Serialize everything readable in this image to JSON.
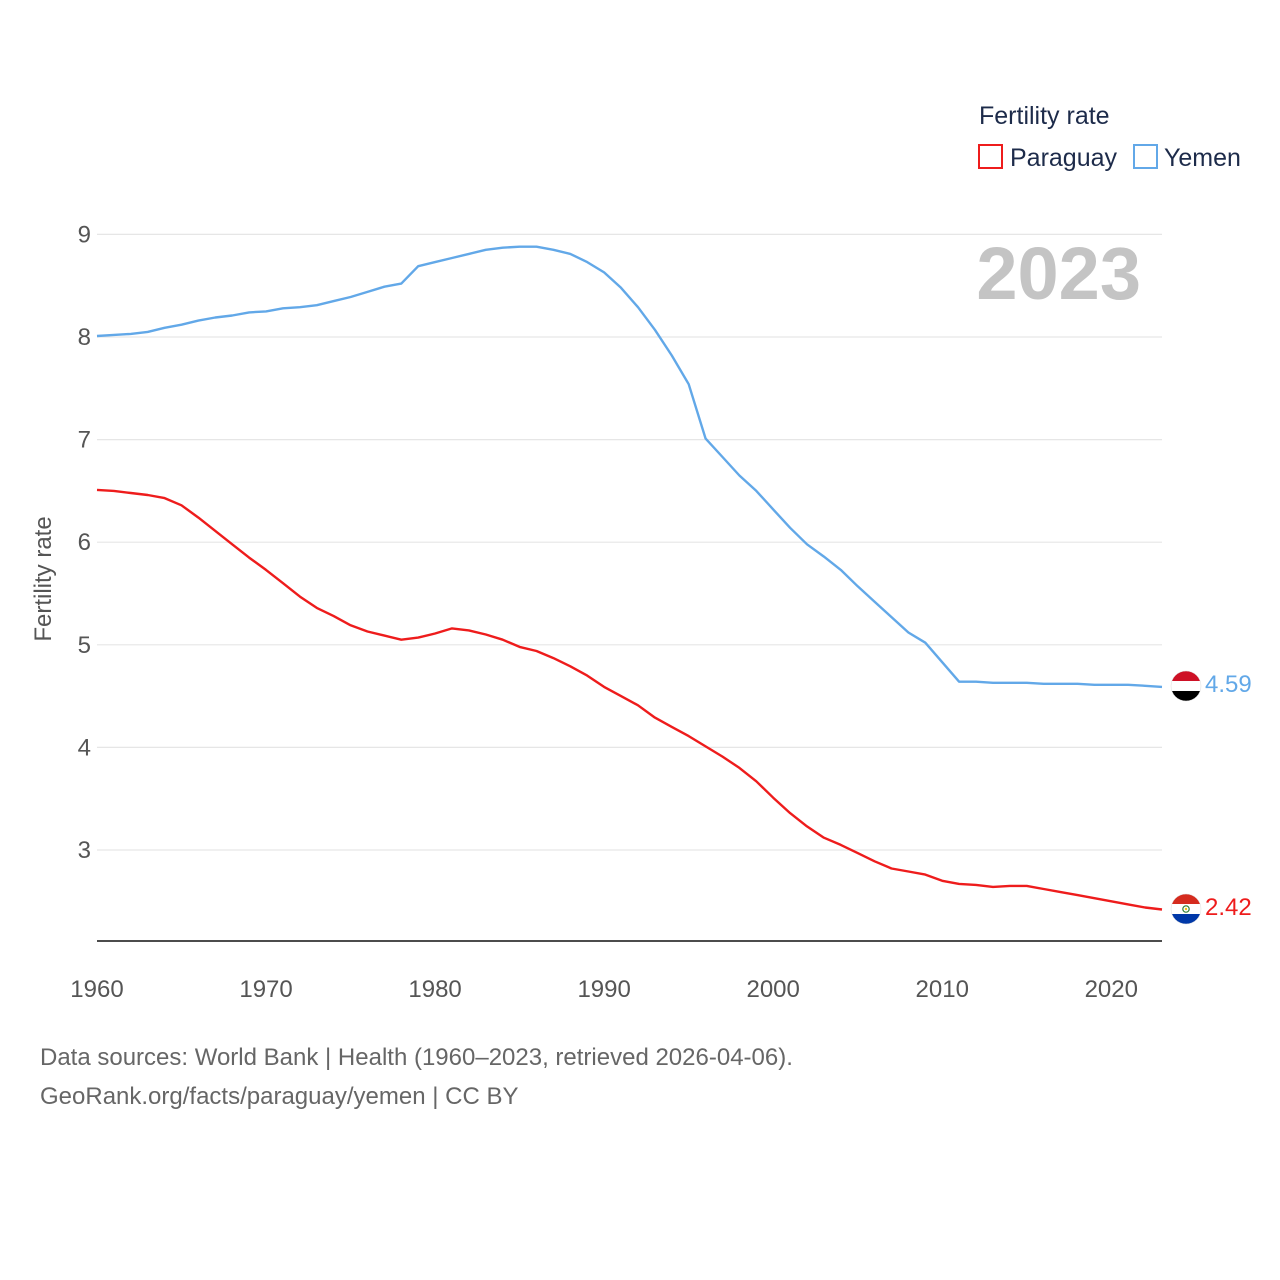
{
  "colors": {
    "paraguay": "#ee1c1c",
    "yemen": "#62a8e8",
    "grid": "#e6e6e6",
    "axis": "#111111",
    "year": "#c4c4c4"
  },
  "legend": {
    "title": "Fertility rate",
    "items": [
      {
        "name": "Paraguay",
        "color": "#ee1c1c"
      },
      {
        "name": "Yemen",
        "color": "#62a8e8"
      }
    ]
  },
  "footer": {
    "source": "Data sources: World Bank | Health (1960–2023, retrieved 2026-04-06).",
    "credit": "GeoRank.org/facts/paraguay/yemen | CC BY"
  },
  "chart_data": {
    "type": "line",
    "title": "",
    "year_label": "2023",
    "xlabel": "",
    "ylabel": "Fertility rate",
    "xlim": [
      1960,
      2023
    ],
    "ylim": [
      2.1,
      9
    ],
    "x_ticks": [
      1960,
      1970,
      1980,
      1990,
      2000,
      2010,
      2020
    ],
    "y_ticks": [
      3,
      4,
      5,
      6,
      7,
      8,
      9
    ],
    "grid": true,
    "legend_position": "top-right",
    "x": [
      1960,
      1961,
      1962,
      1963,
      1964,
      1965,
      1966,
      1967,
      1968,
      1969,
      1970,
      1971,
      1972,
      1973,
      1974,
      1975,
      1976,
      1977,
      1978,
      1979,
      1980,
      1981,
      1982,
      1983,
      1984,
      1985,
      1986,
      1987,
      1988,
      1989,
      1990,
      1991,
      1992,
      1993,
      1994,
      1995,
      1996,
      1997,
      1998,
      1999,
      2000,
      2001,
      2002,
      2003,
      2004,
      2005,
      2006,
      2007,
      2008,
      2009,
      2010,
      2011,
      2012,
      2013,
      2014,
      2015,
      2016,
      2017,
      2018,
      2019,
      2020,
      2021,
      2022,
      2023
    ],
    "series": [
      {
        "name": "Paraguay",
        "color": "#ee1c1c",
        "end_label": "2.42",
        "values": [
          6.51,
          6.5,
          6.48,
          6.46,
          6.43,
          6.36,
          6.24,
          6.11,
          5.98,
          5.85,
          5.73,
          5.6,
          5.47,
          5.36,
          5.28,
          5.19,
          5.13,
          5.09,
          5.05,
          5.07,
          5.11,
          5.16,
          5.14,
          5.1,
          5.05,
          4.98,
          4.94,
          4.87,
          4.79,
          4.7,
          4.59,
          4.5,
          4.41,
          4.29,
          4.2,
          4.11,
          4.01,
          3.91,
          3.8,
          3.67,
          3.51,
          3.36,
          3.23,
          3.12,
          3.05,
          2.97,
          2.89,
          2.82,
          2.79,
          2.76,
          2.7,
          2.67,
          2.66,
          2.64,
          2.65,
          2.65,
          2.62,
          2.59,
          2.56,
          2.53,
          2.5,
          2.47,
          2.44,
          2.42
        ]
      },
      {
        "name": "Yemen",
        "color": "#62a8e8",
        "end_label": "4.59",
        "values": [
          8.01,
          8.02,
          8.03,
          8.05,
          8.09,
          8.12,
          8.16,
          8.19,
          8.21,
          8.24,
          8.25,
          8.28,
          8.29,
          8.31,
          8.35,
          8.39,
          8.44,
          8.49,
          8.52,
          8.69,
          8.73,
          8.77,
          8.81,
          8.85,
          8.87,
          8.88,
          8.88,
          8.85,
          8.81,
          8.73,
          8.63,
          8.48,
          8.29,
          8.07,
          7.82,
          7.54,
          7.01,
          6.83,
          6.65,
          6.5,
          6.32,
          6.14,
          5.98,
          5.86,
          5.73,
          5.57,
          5.42,
          5.27,
          5.12,
          5.02,
          4.83,
          4.64,
          4.64,
          4.63,
          4.63,
          4.63,
          4.62,
          4.62,
          4.62,
          4.61,
          4.61,
          4.61,
          4.6,
          4.59
        ]
      }
    ]
  }
}
